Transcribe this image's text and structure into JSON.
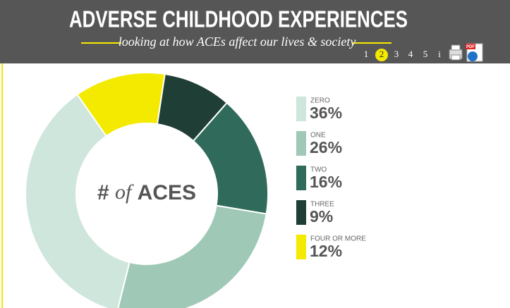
{
  "header": {
    "title": "ADVERSE CHILDHOOD EXPERIENCES",
    "subtitle": "looking at how ACEs affect our lives & society",
    "nav": [
      "1",
      "2",
      "3",
      "4",
      "5",
      "i"
    ],
    "pdf_icon": "PDF"
  },
  "chart_data": {
    "type": "donut",
    "center_label": [
      "#",
      "of",
      "ACES"
    ],
    "categories": [
      "ZERO",
      "ONE",
      "TWO",
      "THREE",
      "FOUR OR MORE"
    ],
    "values": [
      36,
      26,
      16,
      9,
      12
    ],
    "value_labels": [
      "36%",
      "26%",
      "16%",
      "9%",
      "12%"
    ],
    "colors": [
      "#cfe6dc",
      "#9fc9b6",
      "#2f6a5a",
      "#1f3e36",
      "#f4ea00"
    ]
  }
}
